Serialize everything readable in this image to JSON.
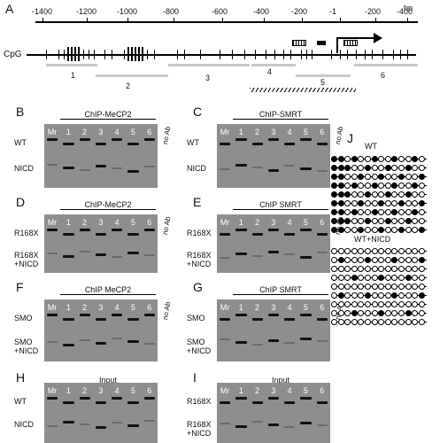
{
  "panel_A": {
    "letter": "A",
    "unit": "bp",
    "ticks": [
      "-1400",
      "-1200",
      "-1000",
      "-800",
      "-600",
      "-400",
      "-200",
      "-1",
      "-200",
      "-400"
    ],
    "cpg_label": "CpG",
    "regions": [
      "1",
      "2",
      "3",
      "4",
      "5",
      "6"
    ]
  },
  "panel_B": {
    "letter": "B",
    "title": "ChIP-MeCP2",
    "row_labels": [
      "WT",
      "NICD"
    ],
    "lanes": [
      "Mr",
      "1",
      "2",
      "3",
      "4",
      "5",
      "6"
    ],
    "noab": "no Ab"
  },
  "panel_C": {
    "letter": "C",
    "title": "ChIP-SMRT",
    "row_labels": [
      "WT",
      "NICD"
    ],
    "lanes": [
      "Mr",
      "1",
      "2",
      "3",
      "4",
      "5",
      "6"
    ],
    "noab": "no Ab"
  },
  "panel_D": {
    "letter": "D",
    "title": "ChIP-MeCP2",
    "row_labels": [
      "R168X",
      "R168X\n+NICD"
    ],
    "lanes": [
      "Mr",
      "1",
      "2",
      "3",
      "4",
      "5",
      "6"
    ],
    "noab": "no Ab"
  },
  "panel_E": {
    "letter": "E",
    "title": "ChIP SMRT",
    "row_labels": [
      "R168X",
      "R168X\n+NICD"
    ],
    "lanes": [
      "Mr",
      "1",
      "2",
      "3",
      "4",
      "5",
      "6"
    ],
    "noab": "no Ab"
  },
  "panel_F": {
    "letter": "F",
    "title": "ChIP MeCP2",
    "row_labels": [
      "SMO",
      "SMO\n+NICD"
    ],
    "lanes": [
      "Mr",
      "1",
      "2",
      "3",
      "4",
      "5",
      "6"
    ],
    "noab": "no Ab"
  },
  "panel_G": {
    "letter": "G",
    "title": "ChIP SMRT",
    "row_labels": [
      "SMO",
      "SMO\n+NICD"
    ],
    "lanes": [
      "Mr",
      "1",
      "2",
      "3",
      "4",
      "5",
      "6"
    ],
    "noab": "no Ab"
  },
  "panel_H": {
    "letter": "H",
    "title": "Input",
    "row_labels": [
      "WT",
      "NICD"
    ],
    "lanes": [
      "Mr",
      "1",
      "2",
      "3",
      "4",
      "5",
      "6"
    ]
  },
  "panel_I": {
    "letter": "I",
    "title": "Input",
    "row_labels": [
      "R168X",
      "R168X\n+NICD"
    ],
    "lanes": [
      "Mr",
      "1",
      "2",
      "3",
      "4",
      "5",
      "6"
    ]
  },
  "panel_J": {
    "letter": "J",
    "group1": "WT",
    "group2": "WT+NICD"
  }
}
